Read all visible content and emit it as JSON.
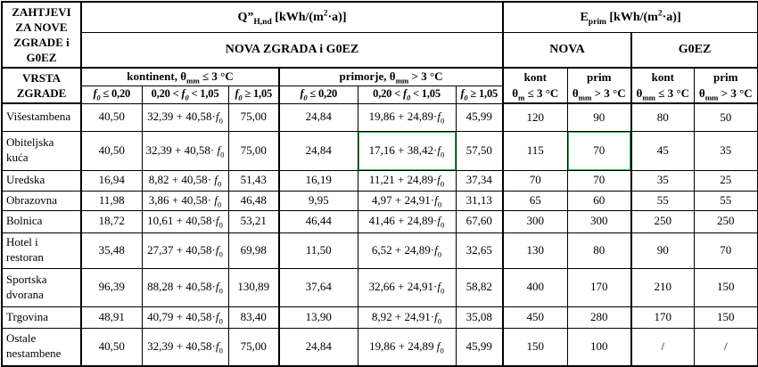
{
  "table": {
    "corner_title": "ZAHTJEVI\nZA NOVE\nZGRADE i\nG0EZ",
    "corner_sub": "VRSTA\nZGRADE",
    "q_header": [
      {
        "t": "Q”"
      },
      {
        "t": "H,nd",
        "sub": true
      },
      {
        "t": " [kWh/(m"
      },
      {
        "t": "2",
        "sup": true
      },
      {
        "t": "·a)]"
      }
    ],
    "eprim_header": [
      {
        "t": "E"
      },
      {
        "t": "prim",
        "sub": true
      },
      {
        "t": " [kWh/(m"
      },
      {
        "t": "2",
        "sup": true
      },
      {
        "t": "·a)]"
      }
    ],
    "nova_zgrada_label": "NOVA ZGRADA i G0EZ",
    "nova_label": "NOVA",
    "g0ez_label": "G0EZ",
    "kontinent_header": [
      {
        "t": "kontinent, θ"
      },
      {
        "t": "mm",
        "sub": true
      },
      {
        "t": " ≤ 3 °C"
      }
    ],
    "primorje_header": [
      {
        "t": "primorje, θ"
      },
      {
        "t": "mm",
        "sub": true
      },
      {
        "t": " > 3 °C"
      }
    ],
    "f_headers": [
      [
        {
          "t": "f",
          "i": true
        },
        {
          "t": "0",
          "sub": true,
          "i": true
        },
        {
          "t": " ≤ 0,20"
        }
      ],
      [
        {
          "t": "0,20 < "
        },
        {
          "t": "f",
          "i": true
        },
        {
          "t": "0",
          "sub": true,
          "i": true
        },
        {
          "t": " < 1,05"
        }
      ],
      [
        {
          "t": "f",
          "i": true
        },
        {
          "t": "0",
          "sub": true,
          "i": true
        },
        {
          "t": " ≥ 1,05"
        }
      ],
      [
        {
          "t": "f",
          "i": true
        },
        {
          "t": "0",
          "sub": true,
          "i": true
        },
        {
          "t": " ≤ 0,20"
        }
      ],
      [
        {
          "t": "0,20 < "
        },
        {
          "t": "f",
          "i": true
        },
        {
          "t": "0",
          "sub": true,
          "i": true
        },
        {
          "t": " < 1,05"
        }
      ],
      [
        {
          "t": "f",
          "i": true
        },
        {
          "t": "0",
          "sub": true,
          "i": true
        },
        {
          "t": " ≥ 1,05"
        }
      ]
    ],
    "eprim_col_headers": [
      [
        {
          "t": "kont\nθ"
        },
        {
          "t": "m",
          "sub": true
        },
        {
          "t": " ≤ 3 °C"
        }
      ],
      [
        {
          "t": "prim\nθ"
        },
        {
          "t": "mm",
          "sub": true
        },
        {
          "t": " > 3 °C"
        }
      ],
      [
        {
          "t": "kont\nθ"
        },
        {
          "t": "mm",
          "sub": true
        },
        {
          "t": " ≤ 3 °C"
        }
      ],
      [
        {
          "t": "prim\nθ"
        },
        {
          "t": "mm",
          "sub": true
        },
        {
          "t": " > 3 °C"
        }
      ]
    ],
    "highlight_color": "#2db24b",
    "rows": [
      {
        "label": "Višestambena",
        "values": [
          "40,50",
          "32,39 + 40,58·f0",
          "75,00",
          "24,84",
          "19,86 + 24,89·f0",
          "45,99",
          "120",
          "90",
          "80",
          "50"
        ]
      },
      {
        "label": "Obiteljska\nkuća",
        "values": [
          "40,50",
          "32,39 + 40,58· f0",
          "75,00",
          "24,84",
          "17,16 + 38,42·f0",
          "57,50",
          "115",
          "70",
          "45",
          "35"
        ],
        "highlight": [
          4,
          7
        ]
      },
      {
        "label": "Uredska",
        "values": [
          "16,94",
          "8,82 + 40,58· f0",
          "51,43",
          "16,19",
          "11,21 + 24,89·f0",
          "37,34",
          "70",
          "70",
          "35",
          "25"
        ]
      },
      {
        "label": "Obrazovna",
        "values": [
          "11,98",
          "3,86 + 40,58· f0",
          "46,48",
          "9,95",
          "4,97 + 24,91·f0",
          "31,13",
          "65",
          "60",
          "55",
          "55"
        ]
      },
      {
        "label": "Bolnica",
        "values": [
          "18,72",
          "10,61 + 40,58·f0",
          "53,21",
          "46,44",
          "41,46 + 24,89·f0",
          "67,60",
          "300",
          "300",
          "250",
          "250"
        ]
      },
      {
        "label": "Hotel i\nrestoran",
        "values": [
          "35,48",
          "27,37 + 40,58·f0",
          "69,98",
          "11,50",
          "6,52 + 24,89·f0",
          "32,65",
          "130",
          "80",
          "90",
          "70"
        ]
      },
      {
        "label": "Sportska\ndvorana",
        "values": [
          "96,39",
          "88,28 + 40,58·f0",
          "130,89",
          "37,64",
          "32,66 + 24,91·f0",
          "58,82",
          "400",
          "170",
          "210",
          "150"
        ]
      },
      {
        "label": "Trgovina",
        "values": [
          "48,91",
          "40,79 + 40,58·f0",
          "83,40",
          "13,90",
          "8,92 + 24,91·f0",
          "35,08",
          "450",
          "280",
          "170",
          "150"
        ]
      },
      {
        "label": "Ostale\nnestambene",
        "values": [
          "40,50",
          "32,39 + 40,58·f0",
          "75,00",
          "24,84",
          "19,86 + 24,89 f0",
          "45,99",
          "150",
          "100",
          "/",
          "/"
        ]
      }
    ]
  }
}
